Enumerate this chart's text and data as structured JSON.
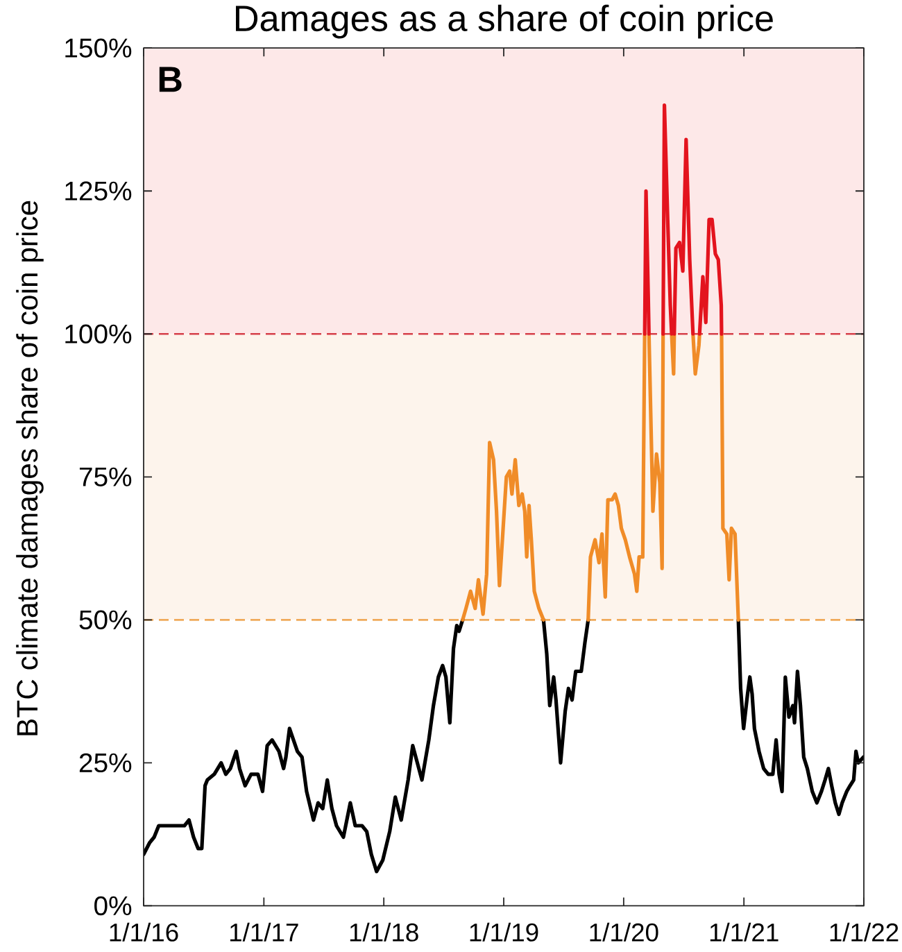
{
  "chart_data": {
    "type": "line",
    "title": "Damages as a share of coin price",
    "ylabel": "BTC climate damages share of coin price",
    "annotations": [
      "B"
    ],
    "xlim": [
      "2016-01-01",
      "2022-01-01"
    ],
    "xticks": [
      {
        "value": "2016-01-01",
        "label": "1/1/16"
      },
      {
        "value": "2017-01-01",
        "label": "1/1/17"
      },
      {
        "value": "2018-01-01",
        "label": "1/1/18"
      },
      {
        "value": "2019-01-01",
        "label": "1/1/19"
      },
      {
        "value": "2020-01-01",
        "label": "1/1/20"
      },
      {
        "value": "2021-01-01",
        "label": "1/1/21"
      },
      {
        "value": "2022-01-01",
        "label": "1/1/22"
      }
    ],
    "ylim": [
      0,
      150
    ],
    "yticks": [
      {
        "value": 0,
        "label": "0%"
      },
      {
        "value": 25,
        "label": "25%"
      },
      {
        "value": 50,
        "label": "50%"
      },
      {
        "value": 75,
        "label": "75%"
      },
      {
        "value": 100,
        "label": "100%"
      },
      {
        "value": 125,
        "label": "125%"
      },
      {
        "value": 150,
        "label": "150%"
      }
    ],
    "bands": [
      {
        "axis": "y",
        "from": 50,
        "to": 100,
        "color": "#fdf4ec"
      },
      {
        "axis": "y",
        "from": 100,
        "to": 150,
        "color": "#fde8e8"
      }
    ],
    "ref_lines": [
      {
        "axis": "y",
        "value": 50,
        "color": "#f0aa5a",
        "line_style": "dashed"
      },
      {
        "axis": "y",
        "value": 100,
        "color": "#d6404a",
        "line_style": "dashed"
      }
    ],
    "series": [
      {
        "color": "#000000",
        "x": [
          "2016-01-01",
          "2016-01-19",
          "2016-02-02",
          "2016-02-16",
          "2016-03-08",
          "2016-04-06",
          "2016-05-04",
          "2016-05-18",
          "2016-06-01",
          "2016-06-15",
          "2016-06-26",
          "2016-07-06",
          "2016-07-13",
          "2016-08-03",
          "2016-08-24",
          "2016-09-07",
          "2016-09-21",
          "2016-10-09",
          "2016-10-19",
          "2016-11-05",
          "2016-11-23",
          "2016-12-14",
          "2016-12-28",
          "2017-01-11",
          "2017-01-26",
          "2017-02-16",
          "2017-03-02",
          "2017-03-09",
          "2017-03-20",
          "2017-04-13",
          "2017-04-27",
          "2017-05-11",
          "2017-06-01",
          "2017-06-15",
          "2017-06-29",
          "2017-07-13",
          "2017-07-27",
          "2017-08-10",
          "2017-08-31",
          "2017-09-21",
          "2017-10-06",
          "2017-10-27",
          "2017-11-10",
          "2017-11-24",
          "2017-12-10",
          "2017-12-29",
          "2018-01-19",
          "2018-02-05",
          "2018-02-23",
          "2018-03-16",
          "2018-03-30",
          "2018-04-13",
          "2018-04-27",
          "2018-05-18",
          "2018-06-01",
          "2018-06-16",
          "2018-06-29",
          "2018-07-09",
          "2018-07-21",
          "2018-08-01",
          "2018-08-11",
          "2018-08-18",
          "2018-08-29",
          "2018-09-08",
          "2019-05-02",
          "2019-05-12",
          "2019-05-21",
          "2019-06-02",
          "2019-06-09",
          "2019-06-23",
          "2019-07-07",
          "2019-07-17",
          "2019-07-28",
          "2019-08-08",
          "2019-08-25",
          "2019-09-05",
          "2019-09-15",
          "2019-09-22",
          "2020-12-15",
          "2020-12-22",
          "2020-12-31",
          "2021-01-12",
          "2021-01-19",
          "2021-01-26",
          "2021-02-02",
          "2021-02-16",
          "2021-03-02",
          "2021-03-16",
          "2021-03-30",
          "2021-04-09",
          "2021-04-18",
          "2021-04-27",
          "2021-05-07",
          "2021-05-18",
          "2021-05-30",
          "2021-06-04",
          "2021-06-13",
          "2021-06-22",
          "2021-07-02",
          "2021-07-13",
          "2021-07-28",
          "2021-08-11",
          "2021-08-25",
          "2021-09-05",
          "2021-09-15",
          "2021-09-25",
          "2021-10-06",
          "2021-10-17",
          "2021-10-27",
          "2021-11-10",
          "2021-11-20",
          "2021-12-01",
          "2021-12-08",
          "2021-12-15",
          "2021-12-31"
        ],
        "values": [
          9,
          11,
          12,
          14,
          14,
          14,
          14,
          15,
          12,
          10,
          10,
          21,
          22,
          23,
          25,
          23,
          24,
          27,
          24,
          21,
          23,
          23,
          20,
          28,
          29,
          27,
          24,
          26,
          31,
          27,
          26,
          20,
          15,
          18,
          17,
          22,
          17,
          14,
          12,
          18,
          14,
          14,
          13,
          9,
          6,
          8,
          13,
          19,
          15,
          22,
          28,
          25,
          22,
          29,
          35,
          40,
          42,
          40,
          32,
          45,
          49,
          48,
          50,
          null,
          50,
          44,
          35,
          40,
          36,
          25,
          34,
          38,
          36,
          41,
          41,
          46,
          50,
          null,
          50,
          38,
          31,
          37,
          40,
          37,
          31,
          27,
          24,
          23,
          23,
          29,
          23,
          20,
          40,
          33,
          35,
          32,
          41,
          35,
          26,
          24,
          20,
          18,
          20,
          22,
          24,
          21,
          18,
          16,
          18,
          20,
          21,
          22,
          27,
          25,
          26
        ]
      },
      {
        "color": "#f08c28",
        "x": [
          "2018-08-29",
          "2018-09-08",
          "2018-09-22",
          "2018-10-06",
          "2018-10-16",
          "2018-10-30",
          "2018-11-10",
          "2018-11-19",
          "2018-12-01",
          "2018-12-10",
          "2018-12-19",
          "2018-12-29",
          "2019-01-09",
          "2019-01-19",
          "2019-01-26",
          "2019-02-05",
          "2019-02-16",
          "2019-02-26",
          "2019-03-06",
          "2019-03-12",
          "2019-03-19",
          "2019-03-26",
          "2019-04-04",
          "2019-04-18",
          "2019-05-02",
          "2019-05-12",
          "2019-09-15",
          "2019-09-22",
          "2019-10-06",
          "2019-10-18",
          "2019-10-27",
          "2019-11-06",
          "2019-11-14",
          "2019-11-27",
          "2019-12-06",
          "2019-12-16",
          "2019-12-25",
          "2020-01-06",
          "2020-01-19",
          "2020-02-03",
          "2020-02-10",
          "2020-02-17",
          "2020-02-28",
          "2020-03-05",
          "2020-03-09",
          "2020-03-18",
          "2020-03-23",
          "2020-03-30",
          "2020-04-10",
          "2020-04-20",
          "2020-04-27",
          "2020-04-30",
          "2020-05-04",
          "2020-05-26",
          "2020-06-01",
          "2020-06-03",
          "2020-06-08",
          "2020-07-30",
          "2020-08-01",
          "2020-08-06",
          "2020-08-17",
          "2020-08-19",
          "2020-08-29",
          "2020-10-25",
          "2020-10-29",
          "2020-11-10",
          "2020-11-17",
          "2020-11-24",
          "2020-12-05",
          "2020-12-15"
        ],
        "values": [
          50,
          52,
          55,
          52,
          57,
          51,
          58,
          81,
          78,
          69,
          56,
          65,
          75,
          76,
          72,
          78,
          70,
          72,
          69,
          61,
          70,
          64,
          55,
          52,
          50,
          null,
          50,
          61,
          64,
          60,
          65,
          54,
          71,
          71,
          72,
          70,
          66,
          64,
          61,
          58,
          55,
          61,
          61,
          100,
          null,
          100,
          87,
          69,
          79,
          74,
          59,
          100,
          null,
          100,
          93,
          100,
          null,
          100,
          98,
          93,
          98,
          100,
          null,
          100,
          66,
          65,
          57,
          66,
          65,
          50
        ]
      },
      {
        "color": "#e3141e",
        "x": [
          "2020-03-05",
          "2020-03-09",
          "2020-03-16",
          "2020-03-18",
          "2020-03-23",
          "2020-04-30",
          "2020-05-04",
          "2020-05-14",
          "2020-05-22",
          "2020-05-26",
          "2020-06-01",
          "2020-06-03",
          "2020-06-08",
          "2020-06-19",
          "2020-06-29",
          "2020-07-09",
          "2020-07-20",
          "2020-07-30",
          "2020-08-01",
          "2020-08-19",
          "2020-08-29",
          "2020-09-07",
          "2020-09-17",
          "2020-09-26",
          "2020-10-06",
          "2020-10-15",
          "2020-10-24",
          "2020-10-25"
        ],
        "values": [
          100,
          125,
          106,
          100,
          null,
          100,
          140,
          120,
          105,
          100,
          null,
          100,
          115,
          116,
          111,
          134,
          113,
          100,
          null,
          100,
          110,
          102,
          120,
          120,
          114,
          113,
          105,
          100
        ]
      }
    ]
  }
}
